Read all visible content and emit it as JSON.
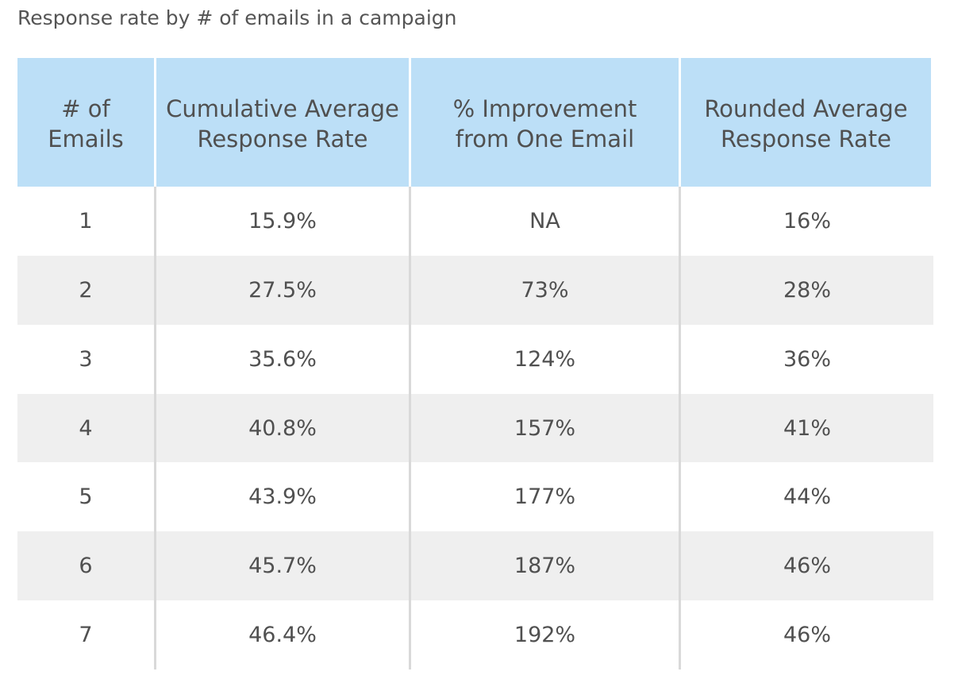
{
  "chart_data": {
    "type": "table",
    "title": "Response rate by # of emails in a campaign",
    "columns": [
      [
        "# of",
        "Emails"
      ],
      [
        "Cumulative Average",
        "Response Rate"
      ],
      [
        "% Improvement",
        "from One Email"
      ],
      [
        "Rounded Average",
        "Response Rate"
      ]
    ],
    "rows": [
      [
        "1",
        "15.9%",
        "NA",
        "16%"
      ],
      [
        "2",
        "27.5%",
        "73%",
        "28%"
      ],
      [
        "3",
        "35.6%",
        "124%",
        "36%"
      ],
      [
        "4",
        "40.8%",
        "157%",
        "41%"
      ],
      [
        "5",
        "43.9%",
        "177%",
        "44%"
      ],
      [
        "6",
        "45.7%",
        "187%",
        "46%"
      ],
      [
        "7",
        "46.4%",
        "192%",
        "46%"
      ]
    ]
  },
  "colors": {
    "header_bg": "#bcdff7",
    "alt_row_bg": "#efefef",
    "text": "#505050",
    "divider": "#d9d9d9"
  }
}
